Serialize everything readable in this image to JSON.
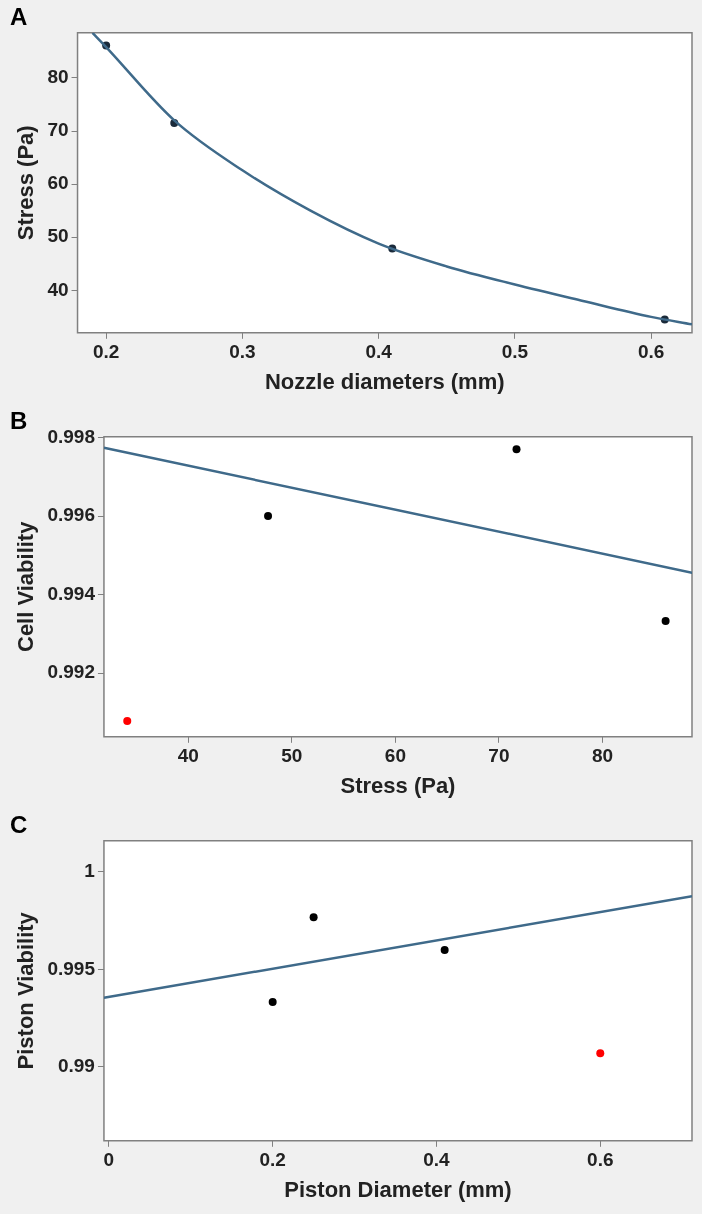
{
  "chart_data": [
    {
      "type": "scatter",
      "title": "A",
      "xlabel": "Nozzle diameters (mm)",
      "ylabel": "Stress (Pa)",
      "xlim": [
        0.179,
        0.63
      ],
      "xticks": [
        0.2,
        0.3,
        0.4,
        0.5,
        0.6
      ],
      "ylim": [
        32,
        88.5
      ],
      "yticks": [
        40,
        50,
        60,
        70,
        80
      ],
      "grid": false,
      "series": [
        {
          "type": "line",
          "marker": "none",
          "color": "#3f6a8a",
          "x": [
            0.19,
            0.2,
            0.25,
            0.3,
            0.35,
            0.4,
            0.45,
            0.5,
            0.55,
            0.6,
            0.63
          ],
          "values": [
            88.5,
            85.8,
            72,
            62.6,
            55,
            48.8,
            44.5,
            41.1,
            38,
            35,
            33.6
          ]
        },
        {
          "marker": "circle",
          "color": "#1a2a3a",
          "x": [
            0.2,
            0.25,
            0.41,
            0.61
          ],
          "values": [
            86.1,
            71.5,
            47.9,
            34.5
          ]
        }
      ]
    },
    {
      "type": "scatter",
      "title": "B",
      "xlabel": "Stress (Pa)",
      "ylabel": "Cell Viability",
      "xlim": [
        31.85,
        88.65
      ],
      "xticks": [
        40,
        50,
        60,
        70,
        80
      ],
      "ylim": [
        0.99038,
        0.99802
      ],
      "yticks": [
        0.992,
        0.994,
        0.996,
        0.998
      ],
      "grid": false,
      "series": [
        {
          "type": "line",
          "marker": "none",
          "color": "#3f6a8a",
          "x": [
            31.85,
            88.65
          ],
          "values": [
            0.99774,
            0.99456
          ]
        },
        {
          "marker": "circle",
          "color": "#000000",
          "x": [
            47.7,
            71.7,
            86.1
          ],
          "values": [
            0.996,
            0.9977,
            0.99333
          ]
        },
        {
          "marker": "circle",
          "color": "#ff0000",
          "x": [
            34.1
          ],
          "values": [
            0.99078
          ]
        }
      ]
    },
    {
      "type": "scatter",
      "title": "C",
      "xlabel": "Piston Diameter (mm)",
      "ylabel": "Piston Viability",
      "xlim": [
        -0.006,
        0.712
      ],
      "xticks": [
        0,
        0.2,
        0.4,
        0.6
      ],
      "ylim": [
        0.9862,
        1.0016
      ],
      "yticks": [
        0.99,
        0.995,
        1
      ],
      "grid": false,
      "series": [
        {
          "type": "line",
          "marker": "none",
          "color": "#3f6a8a",
          "x": [
            -0.006,
            0.712
          ],
          "values": [
            0.99354,
            0.99875
          ]
        },
        {
          "marker": "circle",
          "color": "#000000",
          "x": [
            0.2,
            0.25,
            0.41
          ],
          "values": [
            0.99332,
            0.99767,
            0.99599
          ]
        },
        {
          "marker": "circle",
          "color": "#ff0000",
          "x": [
            0.6
          ],
          "values": [
            0.9907
          ]
        }
      ]
    }
  ]
}
